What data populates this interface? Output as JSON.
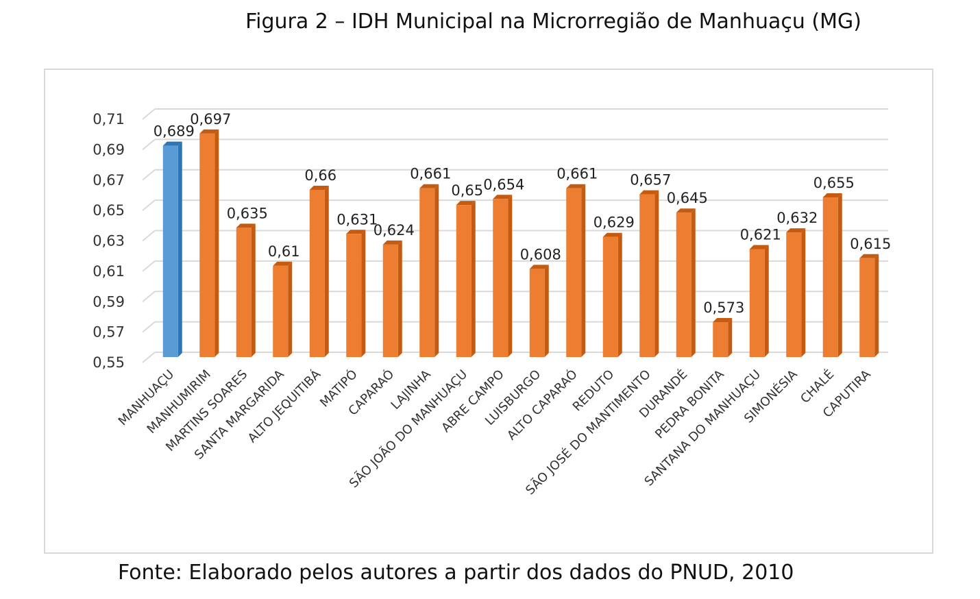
{
  "title": "Figura 2 – IDH Municipal na Microrregião de Manhuaçu (MG)",
  "source": "Fonte: Elaborado pelos autores a partir dos dados do PNUD, 2010",
  "colors": {
    "highlight": "#5b9bd5",
    "highlight_dark": "#2e75b6",
    "bar": "#ed7d31",
    "bar_dark": "#c55a11",
    "grid": "#d9d9d9"
  },
  "chart_data": {
    "type": "bar",
    "title": "Figura 2 – IDH Municipal na Microrregião de Manhuaçu (MG)",
    "xlabel": "",
    "ylabel": "",
    "ylim": [
      0.55,
      0.71
    ],
    "yticks": [
      "0,55",
      "0,57",
      "0,59",
      "0,61",
      "0,63",
      "0,65",
      "0,67",
      "0,69",
      "0,71"
    ],
    "grid": true,
    "categories": [
      "MANHUAÇU",
      "MANHUMIRIM",
      "MARTINS SOARES",
      "SANTA MARGARIDA",
      "ALTO JEQUITIBÁ",
      "MATIPÓ",
      "CAPARAÓ",
      "LAJINHA",
      "SÃO JOÃO DO MANHUAÇU",
      "ABRE CAMPO",
      "LUISBURGO",
      "ALTO CAPARAÓ",
      "REDUTO",
      "SÃO JOSÉ DO MANTIMENTO",
      "DURANDÉ",
      "PEDRA BONITA",
      "SANTANA DO MANHUAÇU",
      "SIMONÉSIA",
      "CHALÉ",
      "CAPUTIRA"
    ],
    "values": [
      0.689,
      0.697,
      0.635,
      0.61,
      0.66,
      0.631,
      0.624,
      0.661,
      0.65,
      0.654,
      0.608,
      0.661,
      0.629,
      0.657,
      0.645,
      0.573,
      0.621,
      0.632,
      0.655,
      0.615
    ],
    "value_labels": [
      "0,689",
      "0,697",
      "0,635",
      "0,61",
      "0,66",
      "0,631",
      "0,624",
      "0,661",
      "0,65",
      "0,654",
      "0,608",
      "0,661",
      "0,629",
      "0,657",
      "0,645",
      "0,573",
      "0,621",
      "0,632",
      "0,655",
      "0,615"
    ],
    "highlight_index": 0
  }
}
